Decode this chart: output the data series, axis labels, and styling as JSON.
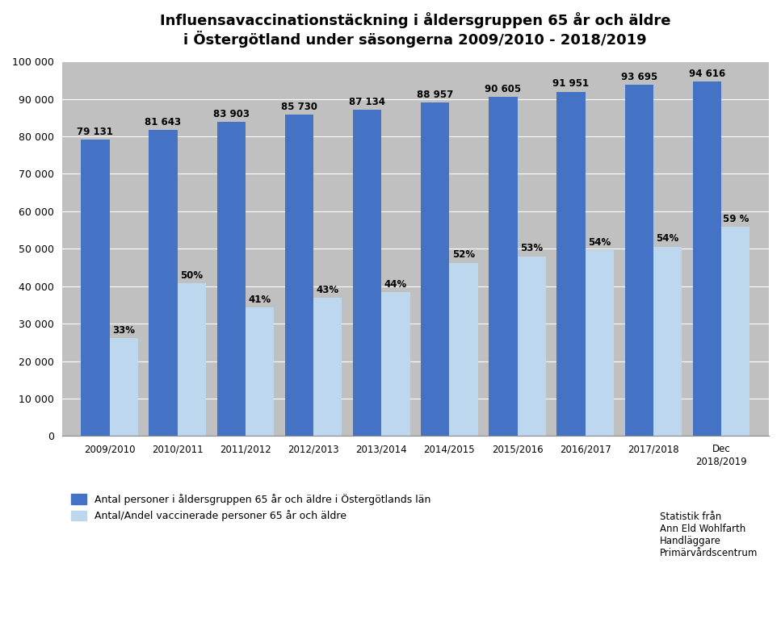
{
  "title_line1": "Influensavaccinationstäckning i åldersgruppen 65 år och äldre",
  "title_line2": "i Östergötland under säsongerna 2009/2010 - 2018/2019",
  "categories": [
    "2009/2010",
    "2010/2011",
    "2011/2012",
    "2012/2013",
    "2013/2014",
    "2014/2015",
    "2015/2016",
    "2016/2017",
    "2017/2018",
    "Dec\n2018/2019"
  ],
  "total_values": [
    79131,
    81643,
    83903,
    85730,
    87134,
    88957,
    90605,
    91951,
    93695,
    94616
  ],
  "vaccinated_values": [
    26113,
    40822,
    34400,
    36864,
    38339,
    46257,
    48021,
    49633,
    50595,
    55823
  ],
  "percentages": [
    "33%",
    "50%",
    "41%",
    "43%",
    "44%",
    "52%",
    "53%",
    "54%",
    "54%",
    "59 %"
  ],
  "total_labels": [
    "79 131",
    "81 643",
    "83 903",
    "85 730",
    "87 134",
    "88 957",
    "90 605",
    "91 951",
    "93 695",
    "94 616"
  ],
  "bar_color_dark": "#4472C4",
  "bar_color_light": "#BDD7EE",
  "background_color": "#C0C0C0",
  "ylim": [
    0,
    100000
  ],
  "yticks": [
    0,
    10000,
    20000,
    30000,
    40000,
    50000,
    60000,
    70000,
    80000,
    90000,
    100000
  ],
  "ytick_labels": [
    "0",
    "10 000",
    "20 000",
    "30 000",
    "40 000",
    "50 000",
    "60 000",
    "70 000",
    "80 000",
    "90 000",
    "100 000"
  ],
  "legend_label1": "Antal personer i åldersgruppen 65 år och äldre i Östergötlands län",
  "legend_label2": "Antal/Andel vaccinerade personer 65 år och äldre",
  "footnote": "Statistik från\nAnn Eld Wohlfarth\nHandläggare\nPrimärvårdscentrum",
  "bar_width": 0.42,
  "bar_gap": 0.0
}
